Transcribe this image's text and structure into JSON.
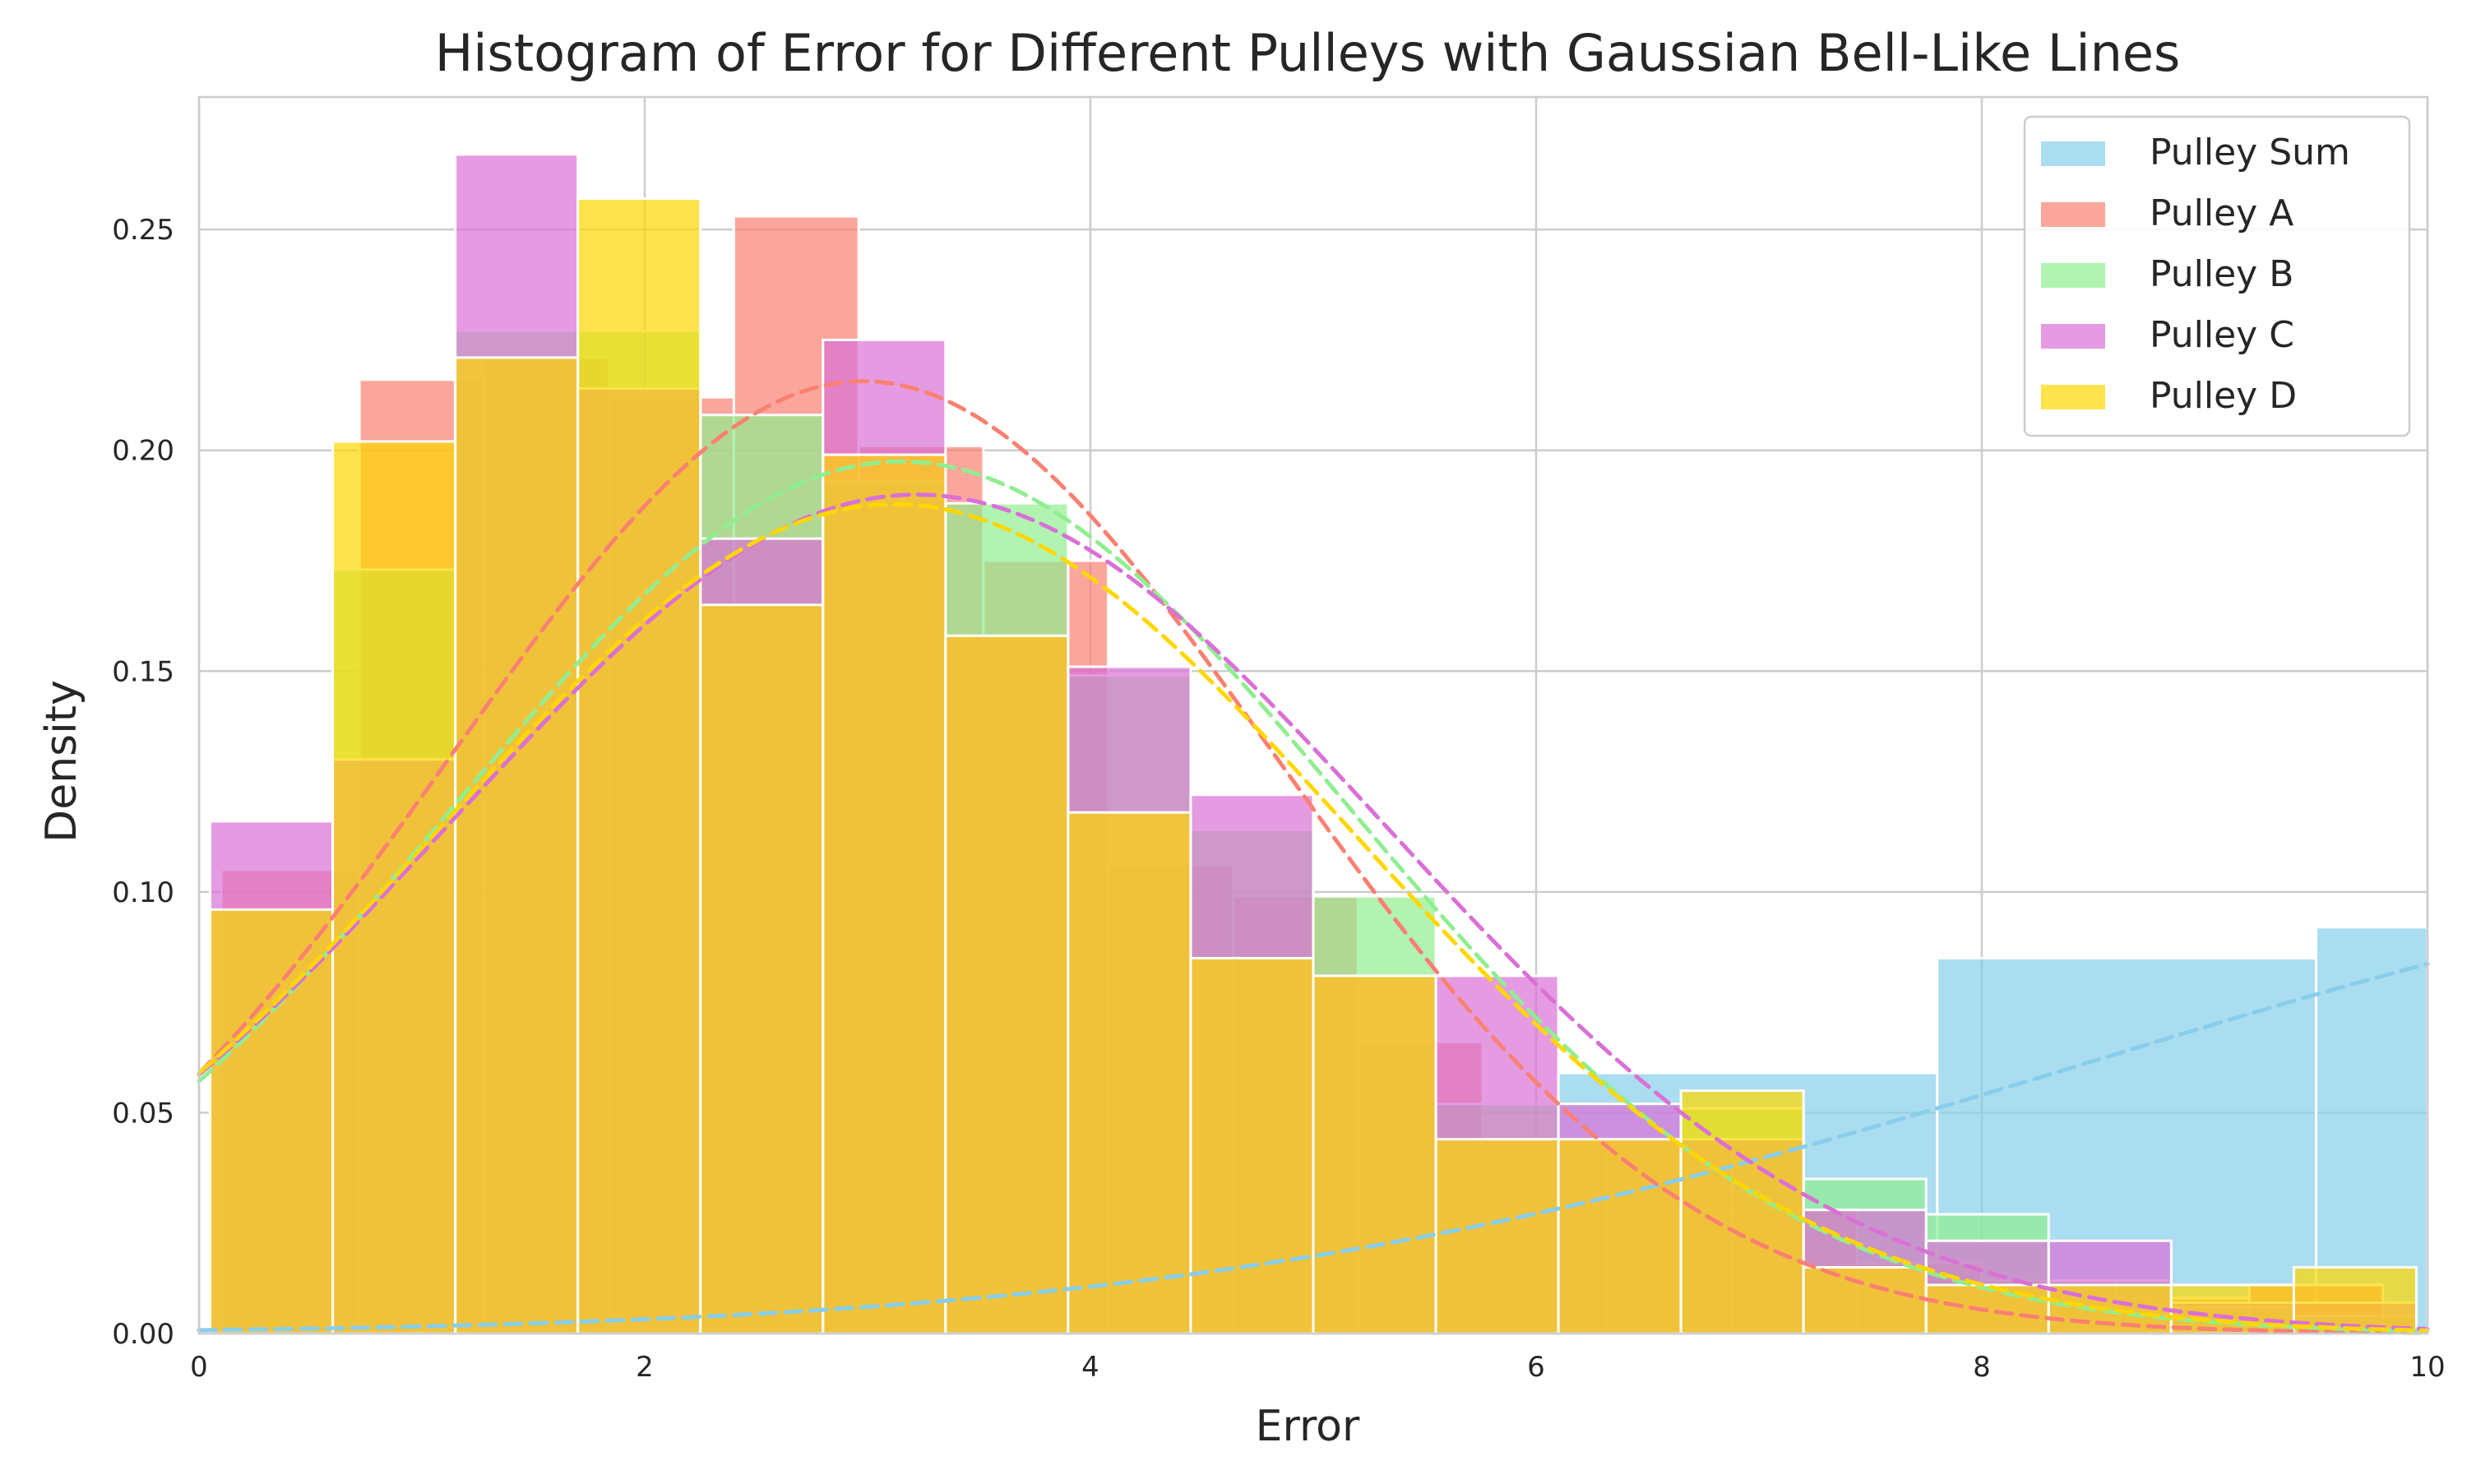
{
  "chart_data": {
    "type": "histogram",
    "title": "Histogram of Error for Different Pulleys with Gaussian Bell-Like Lines",
    "xlabel": "Error",
    "ylabel": "Density",
    "xlim": [
      0,
      10
    ],
    "ylim": [
      0,
      0.28
    ],
    "x_ticks": [
      "0",
      "2",
      "4",
      "6",
      "8",
      "10"
    ],
    "y_ticks": [
      "0.00",
      "0.05",
      "0.10",
      "0.15",
      "0.20",
      "0.25"
    ],
    "grid": true,
    "legend_position": "top-right",
    "series": [
      {
        "name": "Pulley Sum",
        "color": "#87ceeb",
        "bins": [
          {
            "x0": 6.1,
            "x1": 7.8,
            "density": 0.059
          },
          {
            "x0": 7.8,
            "x1": 9.5,
            "density": 0.085
          },
          {
            "x0": 9.5,
            "x1": 10.0,
            "density": 0.092
          }
        ],
        "fit": {
          "mean": 12.5,
          "std": 4.0,
          "scale": 1.02
        }
      },
      {
        "name": "Pulley A",
        "color": "#fa8072",
        "bins": [
          {
            "x0": 0.1,
            "x1": 0.72,
            "density": 0.105
          },
          {
            "x0": 0.72,
            "x1": 1.28,
            "density": 0.216
          },
          {
            "x0": 1.28,
            "x1": 1.84,
            "density": 0.221
          },
          {
            "x0": 1.84,
            "x1": 2.4,
            "density": 0.212
          },
          {
            "x0": 2.4,
            "x1": 2.96,
            "density": 0.253
          },
          {
            "x0": 2.96,
            "x1": 3.52,
            "density": 0.201
          },
          {
            "x0": 3.52,
            "x1": 4.08,
            "density": 0.175
          },
          {
            "x0": 4.08,
            "x1": 4.64,
            "density": 0.106
          },
          {
            "x0": 4.64,
            "x1": 5.2,
            "density": 0.099
          },
          {
            "x0": 5.2,
            "x1": 5.76,
            "density": 0.066
          },
          {
            "x0": 5.76,
            "x1": 6.32,
            "density": 0.044
          },
          {
            "x0": 6.32,
            "x1": 6.88,
            "density": 0.044
          },
          {
            "x0": 6.88,
            "x1": 7.44,
            "density": 0.028
          },
          {
            "x0": 7.44,
            "x1": 8.0,
            "density": 0.016
          },
          {
            "x0": 8.0,
            "x1": 8.6,
            "density": 0.012
          },
          {
            "x0": 8.6,
            "x1": 9.2,
            "density": 0.008
          },
          {
            "x0": 9.2,
            "x1": 9.8,
            "density": 0.011
          }
        ],
        "fit": {
          "mean": 2.98,
          "std": 1.85,
          "scale": 1.0
        }
      },
      {
        "name": "Pulley B",
        "color": "#90ee90",
        "bins": [
          {
            "x0": 0.05,
            "x1": 0.6,
            "density": 0.096
          },
          {
            "x0": 0.6,
            "x1": 1.15,
            "density": 0.173
          },
          {
            "x0": 1.15,
            "x1": 1.7,
            "density": 0.227
          },
          {
            "x0": 1.7,
            "x1": 2.25,
            "density": 0.227
          },
          {
            "x0": 2.25,
            "x1": 2.8,
            "density": 0.208
          },
          {
            "x0": 2.8,
            "x1": 3.35,
            "density": 0.193
          },
          {
            "x0": 3.35,
            "x1": 3.9,
            "density": 0.188
          },
          {
            "x0": 3.9,
            "x1": 4.45,
            "density": 0.149
          },
          {
            "x0": 4.45,
            "x1": 5.0,
            "density": 0.114
          },
          {
            "x0": 5.0,
            "x1": 5.55,
            "density": 0.099
          },
          {
            "x0": 5.55,
            "x1": 6.1,
            "density": 0.052
          },
          {
            "x0": 6.1,
            "x1": 6.65,
            "density": 0.044
          },
          {
            "x0": 6.65,
            "x1": 7.2,
            "density": 0.051
          },
          {
            "x0": 7.2,
            "x1": 7.75,
            "density": 0.035
          },
          {
            "x0": 7.75,
            "x1": 8.3,
            "density": 0.027
          },
          {
            "x0": 8.3,
            "x1": 8.85,
            "density": 0.012
          },
          {
            "x0": 8.85,
            "x1": 9.4,
            "density": 0.006
          },
          {
            "x0": 9.4,
            "x1": 9.95,
            "density": 0.004
          }
        ],
        "fit": {
          "mean": 3.15,
          "std": 2.0,
          "scale": 0.99
        }
      },
      {
        "name": "Pulley C",
        "color": "#da70d6",
        "bins": [
          {
            "x0": 0.05,
            "x1": 0.6,
            "density": 0.116
          },
          {
            "x0": 0.6,
            "x1": 1.15,
            "density": 0.13
          },
          {
            "x0": 1.15,
            "x1": 1.7,
            "density": 0.267
          },
          {
            "x0": 1.7,
            "x1": 2.25,
            "density": 0.214
          },
          {
            "x0": 2.25,
            "x1": 2.8,
            "density": 0.18
          },
          {
            "x0": 2.8,
            "x1": 3.35,
            "density": 0.225
          },
          {
            "x0": 3.35,
            "x1": 3.9,
            "density": 0.158
          },
          {
            "x0": 3.9,
            "x1": 4.45,
            "density": 0.151
          },
          {
            "x0": 4.45,
            "x1": 5.0,
            "density": 0.122
          },
          {
            "x0": 5.0,
            "x1": 5.55,
            "density": 0.081
          },
          {
            "x0": 5.55,
            "x1": 6.1,
            "density": 0.081
          },
          {
            "x0": 6.1,
            "x1": 6.65,
            "density": 0.052
          },
          {
            "x0": 6.65,
            "x1": 7.2,
            "density": 0.044
          },
          {
            "x0": 7.2,
            "x1": 7.75,
            "density": 0.028
          },
          {
            "x0": 7.75,
            "x1": 8.3,
            "density": 0.021
          },
          {
            "x0": 8.3,
            "x1": 8.85,
            "density": 0.021
          },
          {
            "x0": 8.85,
            "x1": 9.4,
            "density": 0.007
          },
          {
            "x0": 9.4,
            "x1": 9.95,
            "density": 0.007
          }
        ],
        "fit": {
          "mean": 3.22,
          "std": 2.1,
          "scale": 1.0
        }
      },
      {
        "name": "Pulley D",
        "color": "#ffd700",
        "bins": [
          {
            "x0": 0.05,
            "x1": 0.6,
            "density": 0.096
          },
          {
            "x0": 0.6,
            "x1": 1.15,
            "density": 0.202
          },
          {
            "x0": 1.15,
            "x1": 1.7,
            "density": 0.221
          },
          {
            "x0": 1.7,
            "x1": 2.25,
            "density": 0.257
          },
          {
            "x0": 2.25,
            "x1": 2.8,
            "density": 0.165
          },
          {
            "x0": 2.8,
            "x1": 3.35,
            "density": 0.199
          },
          {
            "x0": 3.35,
            "x1": 3.9,
            "density": 0.158
          },
          {
            "x0": 3.9,
            "x1": 4.45,
            "density": 0.118
          },
          {
            "x0": 4.45,
            "x1": 5.0,
            "density": 0.085
          },
          {
            "x0": 5.0,
            "x1": 5.55,
            "density": 0.081
          },
          {
            "x0": 5.55,
            "x1": 6.1,
            "density": 0.044
          },
          {
            "x0": 6.1,
            "x1": 6.65,
            "density": 0.044
          },
          {
            "x0": 6.65,
            "x1": 7.2,
            "density": 0.055
          },
          {
            "x0": 7.2,
            "x1": 7.75,
            "density": 0.015
          },
          {
            "x0": 7.75,
            "x1": 8.3,
            "density": 0.011
          },
          {
            "x0": 8.3,
            "x1": 8.85,
            "density": 0.011
          },
          {
            "x0": 8.85,
            "x1": 9.4,
            "density": 0.011
          },
          {
            "x0": 9.4,
            "x1": 9.95,
            "density": 0.015
          }
        ],
        "fit": {
          "mean": 3.12,
          "std": 2.05,
          "scale": 0.965
        }
      }
    ]
  }
}
